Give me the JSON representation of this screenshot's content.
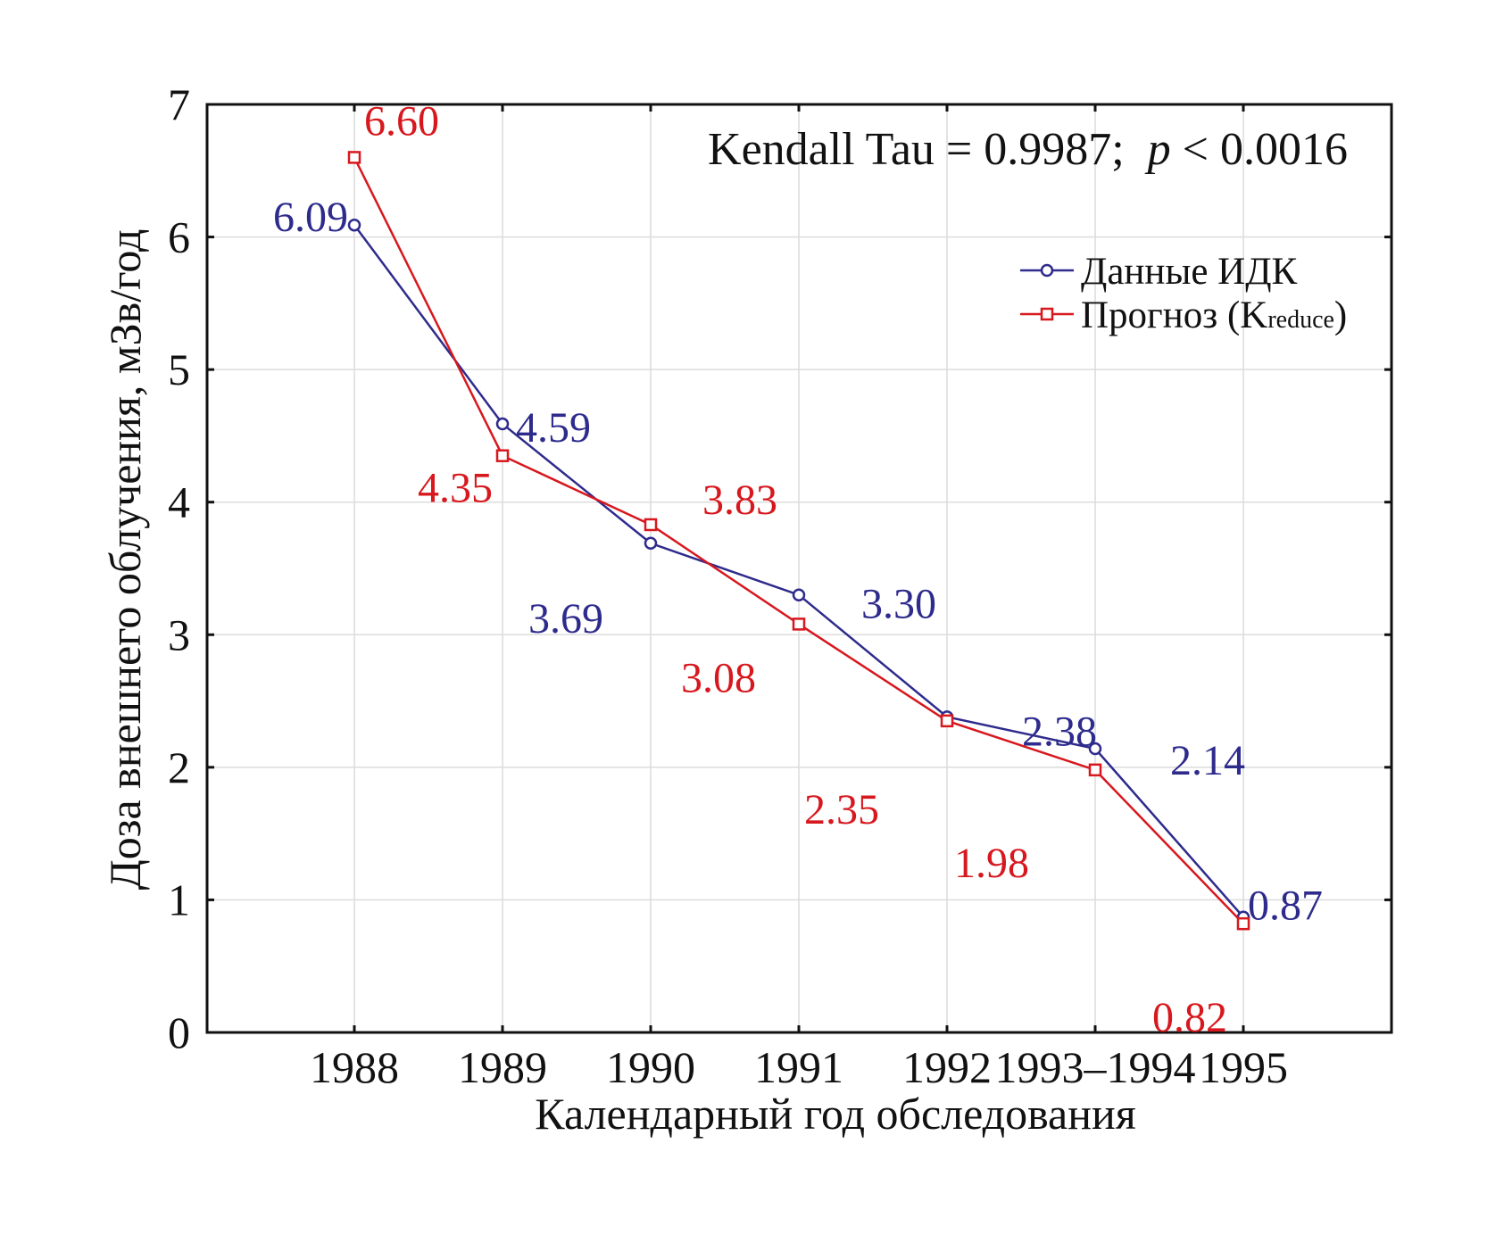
{
  "chart_data": {
    "type": "line",
    "title": "",
    "xlabel": "Календарный год обследования",
    "ylabel": "Доза внешнего облучения, мЗв/год",
    "annotation": {
      "text_prefix": "Kendall Tau = 0.9987;  ",
      "p_symbol": "p",
      "text_suffix": " < 0.0016"
    },
    "categories": [
      "1988",
      "1989",
      "1990",
      "1991",
      "1992",
      "1993–1994",
      "1995"
    ],
    "ylim": [
      0,
      7
    ],
    "yticks": [
      "0",
      "1",
      "2",
      "3",
      "4",
      "5",
      "6",
      "7"
    ],
    "grid": true,
    "legend_position": "top-right",
    "series": [
      {
        "name": "Данные ИДК",
        "marker": "circle",
        "color": "#2e2b8c",
        "values": [
          6.09,
          4.59,
          3.69,
          3.3,
          2.38,
          2.14,
          0.87
        ],
        "labels": [
          "6.09",
          "4.59",
          "3.69",
          "3.30",
          "2.38",
          "2.14",
          "0.87"
        ]
      },
      {
        "name": "Прогноз (K",
        "name_subscript": "reduce",
        "name_suffix": ")",
        "marker": "square",
        "color": "#d7181e",
        "values": [
          6.6,
          4.35,
          3.83,
          3.08,
          2.35,
          1.98,
          0.82
        ],
        "labels": [
          "6.60",
          "4.35",
          "3.83",
          "3.08",
          "2.35",
          "1.98",
          "0.82"
        ]
      }
    ]
  }
}
